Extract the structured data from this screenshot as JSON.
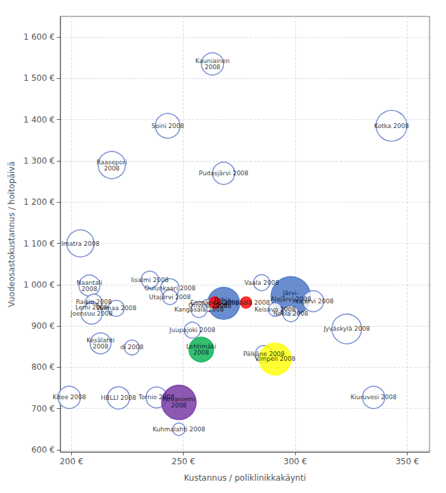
{
  "chart_data": {
    "type": "scatter",
    "xlabel": "Kustannus / poliklinikkakäynti",
    "ylabel": "Vuodeosastokustannus / hoitopäivä",
    "xlim": [
      195,
      360
    ],
    "ylim": [
      595,
      1650
    ],
    "xticks": [
      {
        "value": 200,
        "label": "200 €"
      },
      {
        "value": 250,
        "label": "250 €"
      },
      {
        "value": 300,
        "label": "300 €"
      },
      {
        "value": 350,
        "label": "350 €"
      }
    ],
    "yticks": [
      {
        "value": 600,
        "label": "600 €"
      },
      {
        "value": 700,
        "label": "700 €"
      },
      {
        "value": 800,
        "label": "800 €"
      },
      {
        "value": 900,
        "label": "900 €"
      },
      {
        "value": 1000,
        "label": "1 000 €"
      },
      {
        "value": 1100,
        "label": "1 100 €"
      },
      {
        "value": 1200,
        "label": "1 200 €"
      },
      {
        "value": 1300,
        "label": "1 300 €"
      },
      {
        "value": 1400,
        "label": "1 400 €"
      },
      {
        "value": 1500,
        "label": "1 500 €"
      },
      {
        "value": 1600,
        "label": "1 600 €"
      }
    ],
    "grid": true,
    "names": [
      "Kauniainen\n2008",
      "Kotka 2008",
      "Soini 2008",
      "Raasepori\n2008",
      "Pudasjärvi 2008",
      "Imatra 2008",
      "Iisalmi 2008",
      "Naantali\n2008",
      "Oulunkaari 2008",
      "Vaala 2008",
      "Järvi-\nAlojärvi 2008",
      "Raisio 2008",
      "Utajärvi 2008",
      "Pohja-\n2008",
      "Alajärvi 2008",
      "Lemi 2008",
      "Valmaa 2008",
      "Joensuu 2008",
      "Orivesi 2008",
      "Kangasala 2008",
      "Enonkoski 2008",
      "Lempäälä 2008",
      "Keisavo 2008",
      "Nokia 2008",
      "Jyväskylä 2008",
      "Kesälahti\n2008",
      "di 2008",
      "Juupajoki 2008",
      "Lehtimäki\n2008",
      "Pälkäne 2008",
      "Vimpeli 2008",
      "Kitee 2008",
      "HBLLI 2008",
      "Tornio 2008",
      "Rovaniemi\n2008",
      "Kiuruvesi 2008",
      "Kuhmalahti 2008"
    ],
    "x": [
      263,
      343,
      243,
      218,
      268,
      204,
      235,
      208,
      244,
      285,
      298,
      210,
      244,
      268,
      308,
      209,
      220,
      209,
      261,
      257,
      264,
      278,
      291,
      298,
      323,
      213,
      227,
      254,
      258,
      286,
      291,
      199,
      221,
      238,
      248,
      335,
      248
    ],
    "values": [
      1535,
      1385,
      1385,
      1290,
      1270,
      1100,
      1012,
      998,
      992,
      1005,
      972,
      958,
      970,
      955,
      960,
      945,
      943,
      930,
      950,
      940,
      957,
      957,
      940,
      930,
      893,
      858,
      848,
      890,
      843,
      832,
      820,
      727,
      726,
      727,
      715,
      727,
      650
    ],
    "sizes": [
      18,
      25,
      20,
      22,
      18,
      22,
      14,
      17,
      15,
      13,
      32,
      13,
      12,
      26,
      17,
      10,
      13,
      17,
      10,
      13,
      9,
      9,
      11,
      13,
      24,
      17,
      12,
      13,
      20,
      14,
      26,
      18,
      18,
      17,
      28,
      18,
      10
    ],
    "colors": [
      "#ffffff",
      "#ffffff",
      "#ffffff",
      "#ffffff",
      "#ffffff",
      "#ffffff",
      "#ffffff",
      "#ffffff",
      "#ffffff",
      "#ffffff",
      "#4472c4",
      "#ffffff",
      "#ffffff",
      "#4472c4",
      "#ffffff",
      "#ffffff",
      "#ffffff",
      "#ffffff",
      "#ffffff",
      "#ffffff",
      "#ff0000",
      "#ff0000",
      "#ffffff",
      "#ffffff",
      "#ffffff",
      "#ffffff",
      "#ffffff",
      "#ffffff",
      "#00b050",
      "#ffffff",
      "#ffff00",
      "#ffffff",
      "#ffffff",
      "#ffffff",
      "#7030a0",
      "#ffffff",
      "#ffffff"
    ]
  }
}
